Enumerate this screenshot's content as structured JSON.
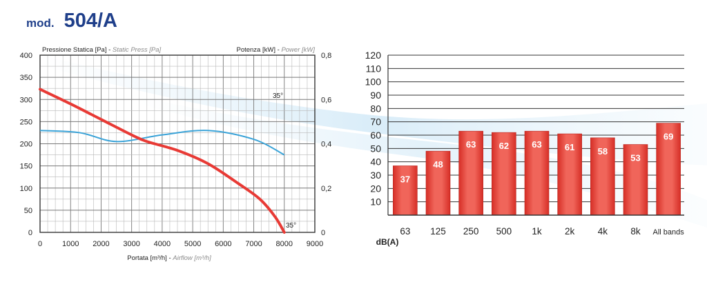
{
  "header": {
    "prefix": "mod.",
    "model": "504/A"
  },
  "colors": {
    "title": "#1f3f8a",
    "pressure_curve": "#e83a35",
    "power_curve": "#3aa3d8",
    "bars": "#e84a40"
  },
  "chart_data": [
    {
      "type": "line",
      "x": [
        0,
        2500,
        5500,
        8000
      ],
      "x_ticks": [
        "0",
        "1000",
        "2000",
        "3000",
        "4000",
        "5000",
        "6000",
        "7000",
        "8000",
        "9000"
      ],
      "xlim": [
        0,
        9000
      ],
      "xlabel": "Portata [m³/h]",
      "xlabel_en": "Airflow [m³/h]",
      "ylabel": "Pressione Statica [Pa]",
      "ylabel_en": "Static Press [Pa]",
      "ylim": [
        0,
        400
      ],
      "y_ticks": [
        "0",
        "50",
        "100",
        "150",
        "200",
        "250",
        "300",
        "350",
        "400"
      ],
      "y2label": "Potenza [kW]",
      "y2label_en": "Power [kW]",
      "y2lim": [
        0,
        0.8
      ],
      "y2_ticks": [
        "0",
        "0,2",
        "0,4",
        "0,6",
        "0,8"
      ],
      "grid": true,
      "series": [
        {
          "axis": "left",
          "label": "35°",
          "points": [
            [
              0,
              323
            ],
            [
              1000,
              290
            ],
            [
              2000,
              255
            ],
            [
              3000,
              220
            ],
            [
              3500,
              205
            ],
            [
              4500,
              185
            ],
            [
              5500,
              155
            ],
            [
              6500,
              110
            ],
            [
              7200,
              75
            ],
            [
              7700,
              35
            ],
            [
              8000,
              0
            ]
          ]
        },
        {
          "axis": "right",
          "label": "35°",
          "points": [
            [
              0,
              0.46
            ],
            [
              1300,
              0.45
            ],
            [
              2500,
              0.41
            ],
            [
              4000,
              0.44
            ],
            [
              5500,
              0.46
            ],
            [
              7000,
              0.42
            ],
            [
              8000,
              0.35
            ]
          ]
        }
      ]
    },
    {
      "type": "bar",
      "categories": [
        "63",
        "125",
        "250",
        "500",
        "1k",
        "2k",
        "4k",
        "8k",
        "All bands"
      ],
      "values": [
        37,
        48,
        63,
        62,
        63,
        61,
        58,
        53,
        69
      ],
      "data_labels": [
        "37",
        "48",
        "63",
        "62",
        "63",
        "61",
        "58",
        "53",
        "69"
      ],
      "xlabel": "dB(A)",
      "ylim": [
        0,
        120
      ],
      "y_ticks": [
        "10",
        "20",
        "30",
        "40",
        "50",
        "60",
        "70",
        "80",
        "90",
        "100",
        "110",
        "120"
      ],
      "grid": true
    }
  ]
}
